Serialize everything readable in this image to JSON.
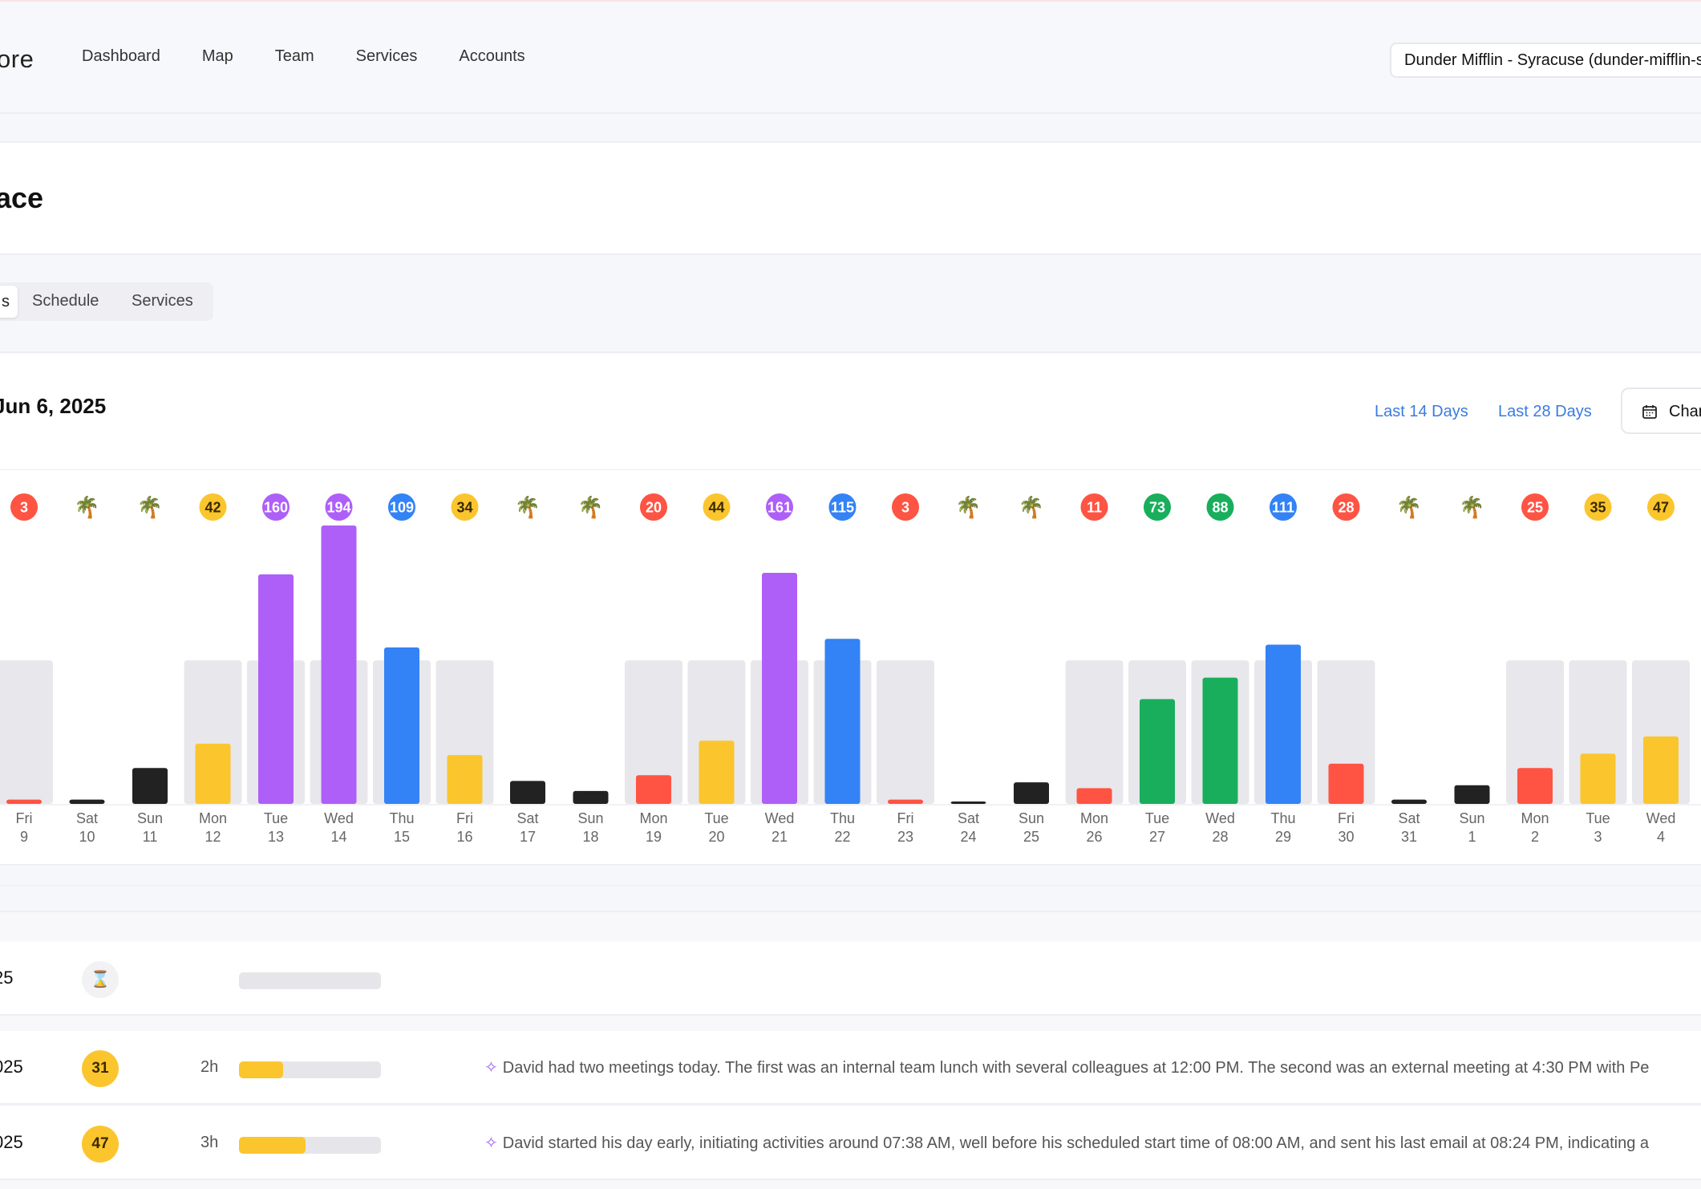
{
  "nav": {
    "brand": "ore",
    "links": [
      "Dashboard",
      "Map",
      "Team",
      "Services",
      "Accounts"
    ],
    "org_select": "Dunder Mifflin - Syracuse (dunder-mifflin-syracuse)"
  },
  "page": {
    "title": "ace"
  },
  "tabs": {
    "active": "s",
    "items": [
      "Schedule",
      "Services"
    ]
  },
  "range": {
    "title": "Jun 6, 2025",
    "links": [
      "Last 14 Days",
      "Last 28 Days"
    ],
    "change_button": "Change Dates",
    "calendar_icon": "calendar-icon"
  },
  "colors": {
    "red": "#ff5343",
    "yellow": "#fbc52d",
    "purple": "#ae5ff8",
    "blue": "#3382f6",
    "green": "#18ae5c",
    "black": "#222222",
    "track": "#e8e8ec"
  },
  "chart_data": {
    "type": "bar",
    "days": [
      {
        "dow": "Fri",
        "date": "9",
        "value": 3,
        "badge": "3",
        "color": "red",
        "workday": true
      },
      {
        "dow": "Sat",
        "date": "10",
        "value": 3,
        "badge": "🌴",
        "color": "black",
        "workday": false
      },
      {
        "dow": "Sun",
        "date": "11",
        "value": 25,
        "badge": "🌴",
        "color": "black",
        "workday": false
      },
      {
        "dow": "Mon",
        "date": "12",
        "value": 42,
        "badge": "42",
        "color": "yellow",
        "workday": true
      },
      {
        "dow": "Tue",
        "date": "13",
        "value": 160,
        "badge": "160",
        "color": "purple",
        "workday": true
      },
      {
        "dow": "Wed",
        "date": "14",
        "value": 194,
        "badge": "194",
        "color": "purple",
        "workday": true
      },
      {
        "dow": "Thu",
        "date": "15",
        "value": 109,
        "badge": "109",
        "color": "blue",
        "workday": true
      },
      {
        "dow": "Fri",
        "date": "16",
        "value": 34,
        "badge": "34",
        "color": "yellow",
        "workday": true
      },
      {
        "dow": "Sat",
        "date": "17",
        "value": 16,
        "badge": "🌴",
        "color": "black",
        "workday": false
      },
      {
        "dow": "Sun",
        "date": "18",
        "value": 9,
        "badge": "🌴",
        "color": "black",
        "workday": false
      },
      {
        "dow": "Mon",
        "date": "19",
        "value": 20,
        "badge": "20",
        "color": "red",
        "workday": true
      },
      {
        "dow": "Tue",
        "date": "20",
        "value": 44,
        "badge": "44",
        "color": "yellow",
        "workday": true
      },
      {
        "dow": "Wed",
        "date": "21",
        "value": 161,
        "badge": "161",
        "color": "purple",
        "workday": true
      },
      {
        "dow": "Thu",
        "date": "22",
        "value": 115,
        "badge": "115",
        "color": "blue",
        "workday": true
      },
      {
        "dow": "Fri",
        "date": "23",
        "value": 3,
        "badge": "3",
        "color": "red",
        "workday": true
      },
      {
        "dow": "Sat",
        "date": "24",
        "value": 1,
        "badge": "🌴",
        "color": "black",
        "workday": false
      },
      {
        "dow": "Sun",
        "date": "25",
        "value": 15,
        "badge": "🌴",
        "color": "black",
        "workday": false
      },
      {
        "dow": "Mon",
        "date": "26",
        "value": 11,
        "badge": "11",
        "color": "red",
        "workday": true
      },
      {
        "dow": "Tue",
        "date": "27",
        "value": 73,
        "badge": "73",
        "color": "green",
        "workday": true
      },
      {
        "dow": "Wed",
        "date": "28",
        "value": 88,
        "badge": "88",
        "color": "green",
        "workday": true
      },
      {
        "dow": "Thu",
        "date": "29",
        "value": 111,
        "badge": "111",
        "color": "blue",
        "workday": true
      },
      {
        "dow": "Fri",
        "date": "30",
        "value": 28,
        "badge": "28",
        "color": "red",
        "workday": true
      },
      {
        "dow": "Sat",
        "date": "31",
        "value": 3,
        "badge": "🌴",
        "color": "black",
        "workday": false
      },
      {
        "dow": "Sun",
        "date": "1",
        "value": 13,
        "badge": "🌴",
        "color": "black",
        "workday": false
      },
      {
        "dow": "Mon",
        "date": "2",
        "value": 25,
        "badge": "25",
        "color": "red",
        "workday": true
      },
      {
        "dow": "Tue",
        "date": "3",
        "value": 35,
        "badge": "35",
        "color": "yellow",
        "workday": true
      },
      {
        "dow": "Wed",
        "date": "4",
        "value": 47,
        "badge": "47",
        "color": "yellow",
        "workday": true
      }
    ],
    "ylim": [
      0,
      194
    ],
    "track_value": 100
  },
  "rows": [
    {
      "date": "25",
      "pending": true,
      "pending_icon": "⌛",
      "score": "",
      "duration": "",
      "progress": 0,
      "summary": ""
    },
    {
      "date": "025",
      "pending": false,
      "score": "31",
      "duration": "2h",
      "progress": 0.31,
      "summary": "David had two meetings today. The first was an internal team lunch with several colleagues at 12:00 PM. The second was an external meeting at 4:30 PM with Pe"
    },
    {
      "date": "025",
      "pending": false,
      "score": "47",
      "duration": "3h",
      "progress": 0.47,
      "summary": "David started his day early, initiating activities around 07:38 AM, well before his scheduled start time of 08:00 AM, and sent his last email at 08:24 PM, indicating a"
    }
  ]
}
